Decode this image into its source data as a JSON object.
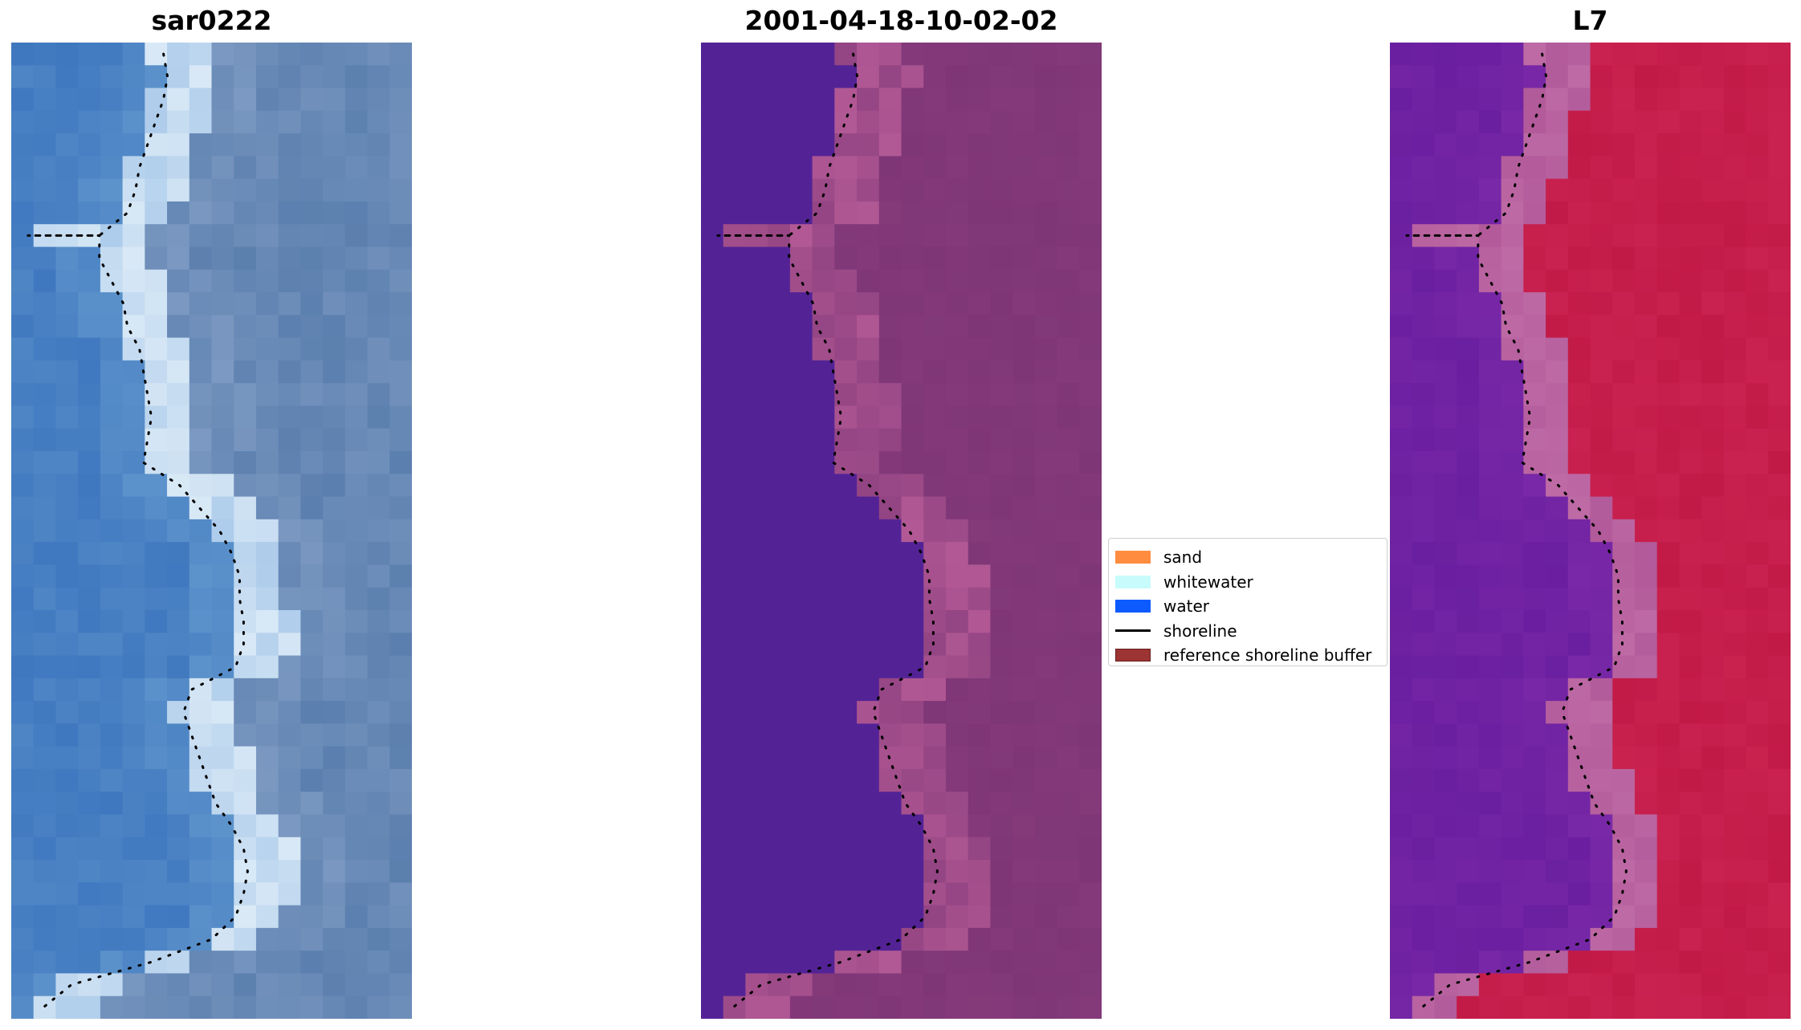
{
  "panels": [
    {
      "title": "sar0222",
      "style": "rgb-image"
    },
    {
      "title": "2001-04-18-10-02-02",
      "style": "classified-image"
    },
    {
      "title": "L7",
      "style": "index-image"
    }
  ],
  "legend": {
    "items": [
      {
        "label": "sand",
        "color": "#ff8c3f",
        "kind": "patch"
      },
      {
        "label": "whitewater",
        "color": "#c8fbfb",
        "kind": "patch"
      },
      {
        "label": "water",
        "color": "#0d5bff",
        "kind": "patch"
      },
      {
        "label": "shoreline",
        "color": "#000000",
        "kind": "line"
      },
      {
        "label": "reference shoreline buffer",
        "color": "#9c3434",
        "kind": "patch"
      }
    ]
  },
  "colors": {
    "rgb_water": "#3f78bf",
    "rgb_land": "#5b7fae",
    "rgb_surf": "#d9e9f6",
    "class_water": "#532396",
    "class_land": "#7e3676",
    "class_buffer": "#b25995",
    "index_water": "#6a1fa0",
    "index_land": "#c21a47",
    "index_buffer": "#b25a9a",
    "shoreline": "#000000"
  },
  "shoreline_profile": [
    0.38,
    0.39,
    0.38,
    0.36,
    0.34,
    0.32,
    0.31,
    0.29,
    0.22,
    0.22,
    0.25,
    0.28,
    0.29,
    0.32,
    0.33,
    0.34,
    0.35,
    0.34,
    0.33,
    0.42,
    0.47,
    0.52,
    0.55,
    0.57,
    0.57,
    0.58,
    0.58,
    0.56,
    0.45,
    0.43,
    0.45,
    0.47,
    0.49,
    0.51,
    0.55,
    0.58,
    0.59,
    0.58,
    0.56,
    0.5,
    0.35,
    0.15,
    0.08
  ],
  "jetty": {
    "row": 8,
    "length": 0.18
  }
}
